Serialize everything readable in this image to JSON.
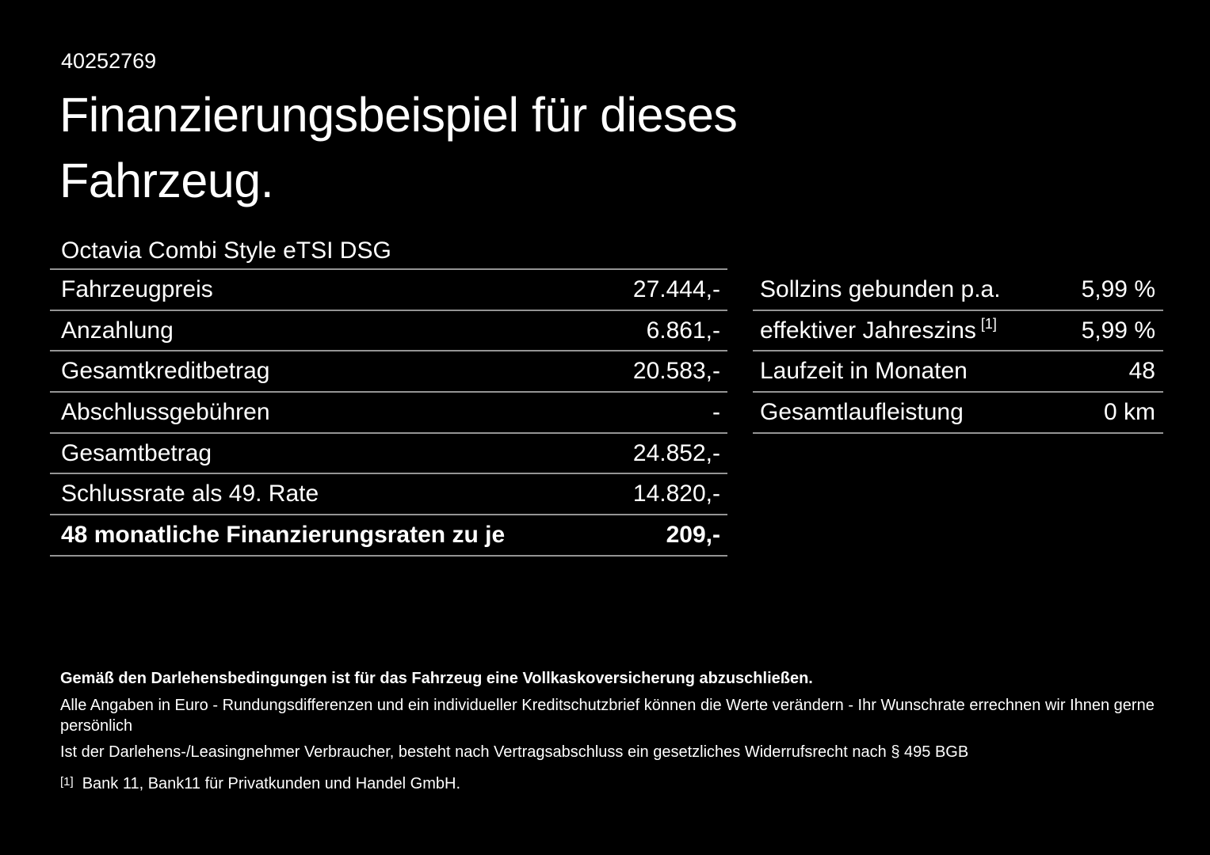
{
  "colors": {
    "background": "#000000",
    "text": "#ffffff",
    "divider": "#949494"
  },
  "header": {
    "id_number": "40252769",
    "title_line1": "Finanzierungsbeispiel für dieses",
    "title_line2": "Fahrzeug."
  },
  "financing_table": {
    "header": "Octavia Combi Style eTSI DSG",
    "rows": [
      {
        "label": "Fahrzeugpreis",
        "value": "27.444,-",
        "bold": false
      },
      {
        "label": "Anzahlung",
        "value": "6.861,-",
        "bold": false
      },
      {
        "label": "Gesamtkreditbetrag",
        "value": "20.583,-",
        "bold": false
      },
      {
        "label": "Abschlussgebühren",
        "value": "-",
        "bold": false
      },
      {
        "label": "Gesamtbetrag",
        "value": "24.852,-",
        "bold": false
      },
      {
        "label": "Schlussrate als 49. Rate",
        "value": "14.820,-",
        "bold": false
      },
      {
        "label": "48 monatliche Finanzierungsraten zu je",
        "value": "209,-",
        "bold": true
      }
    ]
  },
  "conditions_table": {
    "rows": [
      {
        "label": "Sollzins gebunden p.a.",
        "superscript": "",
        "value": "5,99 %"
      },
      {
        "label": "effektiver Jahreszins",
        "superscript": "[1]",
        "value": "5,99 %"
      },
      {
        "label": "Laufzeit in Monaten",
        "superscript": "",
        "value": "48"
      },
      {
        "label": "Gesamtlaufleistung",
        "superscript": "",
        "value": "0 km"
      }
    ]
  },
  "footer": {
    "bold_note": "Gemäß den Darlehensbedingungen ist für das Fahrzeug eine Vollkaskoversicherung abzuschließen.",
    "note_line2": "Alle Angaben in Euro - Rundungsdifferenzen und ein individueller Kreditschutzbrief können die Werte verändern - Ihr Wunschrate errechnen wir Ihnen gerne persönlich",
    "note_line3": "Ist der Darlehens-/Leasingnehmer Verbraucher, besteht nach Vertragsabschluss ein gesetzliches Widerrufsrecht nach § 495 BGB",
    "footnote_marker": "[1]",
    "footnote_text": "Bank 11, Bank11 für Privatkunden und Handel GmbH."
  }
}
